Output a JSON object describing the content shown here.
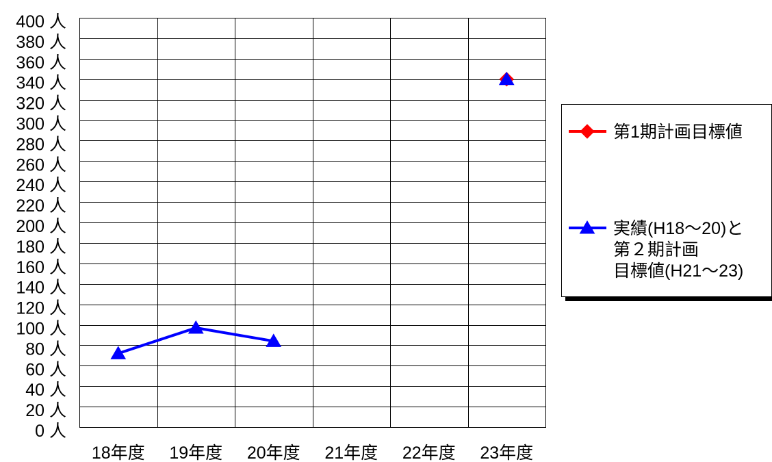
{
  "chart_data": {
    "type": "line",
    "categories": [
      "18年度",
      "19年度",
      "20年度",
      "21年度",
      "22年度",
      "23年度"
    ],
    "ylim": [
      0,
      400
    ],
    "y_ticks": [
      0,
      20,
      40,
      60,
      80,
      100,
      120,
      140,
      160,
      180,
      200,
      220,
      240,
      260,
      280,
      300,
      320,
      340,
      360,
      380,
      400
    ],
    "y_tick_labels": [
      "0 人",
      "20 人",
      "40 人",
      "60 人",
      "80 人",
      "100 人",
      "120 人",
      "140 人",
      "160 人",
      "180 人",
      "200 人",
      "220 人",
      "240 人",
      "260 人",
      "280 人",
      "300 人",
      "320 人",
      "340 人",
      "360 人",
      "380 人",
      "400 人"
    ],
    "grid": true,
    "legend": "right",
    "series": [
      {
        "name_lines": [
          "第1期計画目標値"
        ],
        "values": [
          null,
          null,
          null,
          null,
          null,
          340
        ],
        "color": "#ff0000",
        "marker": "diamond"
      },
      {
        "name_lines": [
          "実績(H18～20)と",
          "第２期計画",
          "目標値(H21～23)"
        ],
        "values": [
          72,
          97,
          84,
          null,
          null,
          340
        ],
        "color": "#0000ff",
        "marker": "triangle"
      }
    ]
  }
}
